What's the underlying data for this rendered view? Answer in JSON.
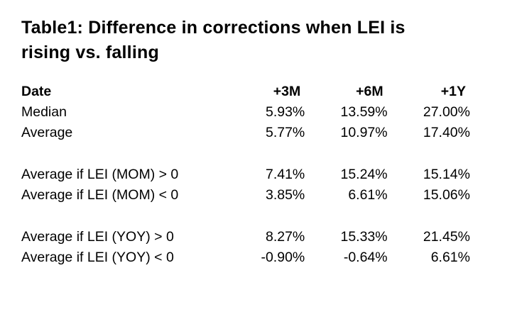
{
  "title": "Table1: Difference in corrections when LEI is rising vs. falling",
  "chart_data": {
    "type": "table",
    "title": "Table1: Difference in corrections when LEI is rising vs. falling",
    "columns": [
      "Date",
      "+3M",
      "+6M",
      "+1Y"
    ],
    "rows": [
      {
        "label": "Median",
        "values": [
          "5.93%",
          "13.59%",
          "27.00%"
        ]
      },
      {
        "label": "Average",
        "values": [
          "5.77%",
          "10.97%",
          "17.40%"
        ]
      },
      {
        "label": "Average if LEI (MOM) > 0",
        "values": [
          "7.41%",
          "15.24%",
          "15.14%"
        ]
      },
      {
        "label": "Average if LEI (MOM) < 0",
        "values": [
          "3.85%",
          "6.61%",
          "15.06%"
        ]
      },
      {
        "label": "Average if LEI (YOY) > 0",
        "values": [
          "8.27%",
          "15.33%",
          "21.45%"
        ]
      },
      {
        "label": "Average if LEI (YOY) < 0",
        "values": [
          "-0.90%",
          "-0.64%",
          "6.61%"
        ]
      }
    ],
    "row_groups": [
      [
        0,
        1
      ],
      [
        2,
        3
      ],
      [
        4,
        5
      ]
    ],
    "colors": {
      "text": "#000000",
      "background": "#ffffff"
    }
  }
}
